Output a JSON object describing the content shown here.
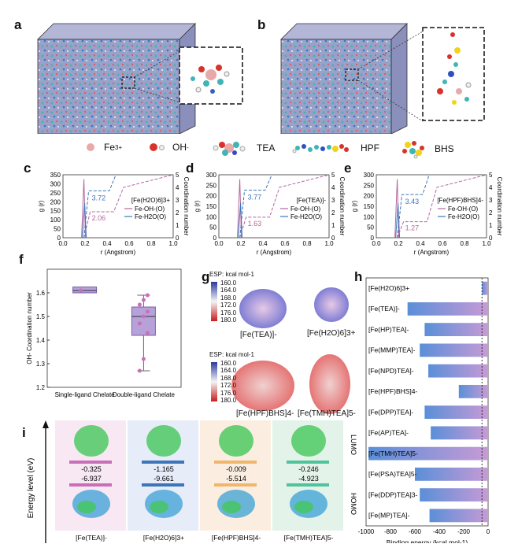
{
  "panels": {
    "a": "a",
    "b": "b",
    "c": "c",
    "d": "d",
    "e": "e",
    "f": "f",
    "g": "g",
    "h": "h",
    "i": "i"
  },
  "legend": {
    "fe": "Fe3+",
    "fe_base": "Fe",
    "fe_sup": "3+",
    "oh": "OH-",
    "oh_base": "OH",
    "oh_sup": "-",
    "tea": "TEA",
    "hpf": "HPF",
    "bhs": "BHS"
  },
  "rdf_common": {
    "xlabel": "r (Angstrom)",
    "ylabel_left": "g (r)",
    "ylabel_right": "Coordination number",
    "x_ticks": [
      "0.0",
      "0.2",
      "0.4",
      "0.6",
      "0.8",
      "1.0"
    ],
    "y_right_ticks": [
      "0",
      "1",
      "2",
      "3",
      "4",
      "5"
    ],
    "series_oh": "Fe-OH-(O)",
    "series_h2o": "Fe-H2O(O)"
  },
  "chart_data": [
    {
      "panel": "c",
      "type": "line",
      "title": "[Fe(H2O)6]3+",
      "ylim": [
        0,
        350
      ],
      "y_ticks": [
        "0",
        "50",
        "100",
        "150",
        "200",
        "250",
        "300",
        "350"
      ],
      "annotations": [
        "3.72",
        "2.06"
      ],
      "series": [
        {
          "name": "Fe-OH-(O)",
          "color": "#b5679f"
        },
        {
          "name": "Fe-H2O(O)",
          "color": "#3d76b8"
        }
      ]
    },
    {
      "panel": "d",
      "type": "line",
      "title": "[Fe(TEA)]-",
      "ylim": [
        0,
        300
      ],
      "y_ticks": [
        "0",
        "50",
        "100",
        "150",
        "200",
        "250",
        "300"
      ],
      "annotations": [
        "3.77",
        "1.63"
      ],
      "series": [
        {
          "name": "Fe-OH-(O)",
          "color": "#b5679f"
        },
        {
          "name": "Fe-H2O(O)",
          "color": "#3d76b8"
        }
      ]
    },
    {
      "panel": "e",
      "type": "line",
      "title": "[Fe(HPF)BHS]4-",
      "ylim": [
        0,
        300
      ],
      "y_ticks": [
        "0",
        "50",
        "100",
        "150",
        "200",
        "250",
        "300"
      ],
      "annotations": [
        "3.43",
        "1.27"
      ],
      "series": [
        {
          "name": "Fe-OH-(O)",
          "color": "#b5679f"
        },
        {
          "name": "Fe-H2O(O)",
          "color": "#3d76b8"
        }
      ]
    },
    {
      "panel": "f",
      "type": "box",
      "ylabel": "OH- Coordination number",
      "categories": [
        "Single-ligand Chelate",
        "Double-ligand Chelate"
      ],
      "ylim": [
        1.2,
        1.7
      ],
      "y_ticks": [
        "1.2",
        "1.3",
        "1.4",
        "1.5",
        "1.6"
      ],
      "boxes": [
        {
          "q1": 1.6,
          "median": 1.61,
          "q3": 1.625,
          "min": 1.6,
          "max": 1.625,
          "points": [
            1.61
          ]
        },
        {
          "q1": 1.42,
          "median": 1.5,
          "q3": 1.54,
          "min": 1.27,
          "max": 1.59,
          "points": [
            1.27,
            1.32,
            1.43,
            1.47,
            1.5,
            1.52,
            1.55,
            1.57,
            1.59
          ]
        }
      ]
    },
    {
      "panel": "h",
      "type": "bar",
      "xlabel": "Binding energy (kcal mol-1)",
      "xlim": [
        -1000,
        0
      ],
      "x_ticks": [
        "-1000",
        "-800",
        "-600",
        "-400",
        "-200",
        "0"
      ],
      "categories": [
        "[Fe(H2O)6]3+",
        "[Fe(TEA)]-",
        "[Fe(HP)TEA]-",
        "[Fe(MMP)TEA]-",
        "[Fe(NPD)TEA]-",
        "[Fe(HPF)BHS]4-",
        "[Fe(DPP)TEA]-",
        "[Fe(AP)TEA]-",
        "[Fe(TMH)TEA]5-",
        "[Fe(PSA)TEA]5-",
        "[Fe(DDP)TEA]3-",
        "[Fe(MP)TEA]-"
      ],
      "values": [
        -50,
        -660,
        -520,
        -560,
        -490,
        -240,
        -520,
        -470,
        -980,
        -600,
        -560,
        -480
      ]
    },
    {
      "panel": "i",
      "type": "energy-levels",
      "ylabel": "Energy level (eV)",
      "side_labels": [
        "LUMO",
        "HOMO"
      ],
      "categories": [
        "[Fe(TEA)]-",
        "[Fe(H2O)6]3+",
        "[Fe(HPF)BHS]4-",
        "[Fe(TMH)TEA]5-"
      ],
      "lumo": [
        -0.325,
        -1.165,
        -0.009,
        -0.246
      ],
      "homo": [
        -6.937,
        -9.661,
        -5.514,
        -4.923
      ],
      "lumo_text": [
        "-0.325",
        "-1.165",
        "-0.009",
        "-0.246"
      ],
      "homo_text": [
        "-6.937",
        "-9.661",
        "-5.514",
        "-4.923"
      ]
    }
  ],
  "esp": {
    "label": "ESP: kcal mol-1",
    "ticks": [
      "160.0",
      "164.0",
      "168.0",
      "172.0",
      "176.0",
      "180.0"
    ],
    "molecules": [
      "[Fe(TEA)]-",
      "[Fe(H2O)6]3+",
      "[Fe(HPF)BHS]4-",
      "[Fe(TMH)TEA]5-"
    ]
  },
  "colors": {
    "pink": "#b5679f",
    "blue": "#3d76b8",
    "bar_left": "#5a8fd8",
    "bar_right": "#c79ad6",
    "fe": "#e8a9a9",
    "oh": "#d9322b"
  }
}
